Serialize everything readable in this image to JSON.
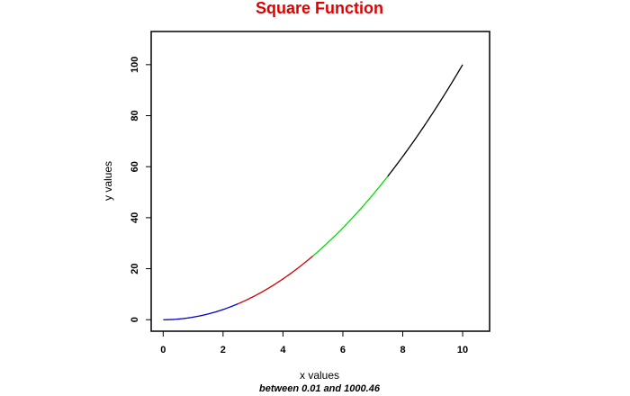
{
  "chart_data": {
    "type": "line",
    "title": "Square Function",
    "title_color": "#e00000",
    "xlabel": "x values",
    "ylabel": "y values",
    "subtitle": "between 0.01 and 1000.46",
    "xlim": [
      -0.4,
      10.9
    ],
    "ylim": [
      -4.5,
      113
    ],
    "xticks": [
      0,
      2,
      4,
      6,
      8,
      10
    ],
    "yticks": [
      0,
      20,
      40,
      60,
      80,
      100
    ],
    "function": "y = x^2",
    "series": [
      {
        "color": "#0000cc",
        "x": [
          0,
          0.5,
          1,
          1.5,
          2,
          2.5
        ],
        "y": [
          0,
          0.25,
          1,
          2.25,
          4,
          6.25
        ]
      },
      {
        "color": "#cc0000",
        "x": [
          2.5,
          3,
          3.5,
          4,
          4.5,
          5
        ],
        "y": [
          6.25,
          9,
          12.25,
          16,
          20.25,
          25
        ]
      },
      {
        "color": "#00dd00",
        "x": [
          5,
          5.5,
          6,
          6.5,
          7,
          7.5
        ],
        "y": [
          25,
          30.25,
          36,
          42.25,
          49,
          56.25
        ]
      },
      {
        "color": "#000000",
        "x": [
          7.5,
          8,
          8.5,
          9,
          9.5,
          10
        ],
        "y": [
          56.25,
          64,
          72.25,
          81,
          90.25,
          100
        ]
      }
    ],
    "grid": false,
    "legend": "none"
  }
}
